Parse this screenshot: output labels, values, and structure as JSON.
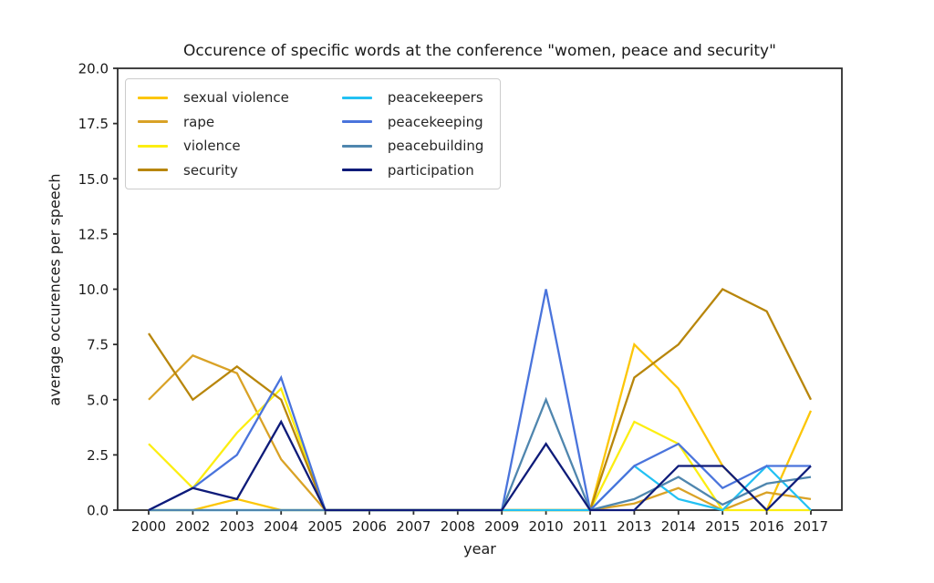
{
  "figure": {
    "title": "Occurence of specific words at the conference \"women, peace and security\""
  },
  "chart_data": {
    "type": "line",
    "title": "Occurence of specific words at the conference \"women, peace and security\"",
    "xlabel": "year",
    "ylabel": "average occurences per speech",
    "x_labels": [
      "2000",
      "2002",
      "2003",
      "2004",
      "2005",
      "2006",
      "2007",
      "2008",
      "2009",
      "2010",
      "2011",
      "2013",
      "2014",
      "2015",
      "2016",
      "2017"
    ],
    "ylim": [
      0,
      20
    ],
    "ytick_step": 2.5,
    "ytick_labels": [
      "0.0",
      "2.5",
      "5.0",
      "7.5",
      "10.0",
      "12.5",
      "15.0",
      "17.5",
      "20.0"
    ],
    "grid": false,
    "legend": {
      "location": "upper left",
      "columns": 2
    },
    "series": [
      {
        "name": "sexual violence",
        "color": "#fcc608",
        "values": [
          0,
          0,
          0.5,
          0,
          0,
          0,
          0,
          0,
          0,
          0,
          0,
          7.5,
          5.5,
          2,
          0,
          4.5
        ]
      },
      {
        "name": "rape",
        "color": "#d9a226",
        "values": [
          5,
          7,
          6.2,
          2.3,
          0,
          0,
          0,
          0,
          0,
          0,
          0,
          0.3,
          1,
          0,
          0.8,
          0.5
        ]
      },
      {
        "name": "violence",
        "color": "#fcee11",
        "values": [
          3,
          1,
          3.5,
          5.5,
          0,
          0,
          0,
          0,
          0,
          0,
          0,
          4,
          3,
          0,
          0,
          0
        ]
      },
      {
        "name": "security",
        "color": "#b8860b",
        "values": [
          8,
          5,
          6.5,
          5,
          0,
          0,
          0,
          0,
          0,
          0,
          0,
          6,
          7.5,
          10,
          9,
          5
        ]
      },
      {
        "name": "peacekeepers",
        "color": "#23c1f3",
        "values": [
          0,
          0,
          0,
          0,
          0,
          0,
          0,
          0,
          0,
          0,
          0,
          2,
          0.5,
          0,
          2,
          0
        ]
      },
      {
        "name": "peacekeeping",
        "color": "#4a74dc",
        "values": [
          0,
          1,
          2.5,
          6,
          0,
          0,
          0,
          0,
          0,
          10,
          0,
          2,
          3,
          1,
          2,
          2
        ]
      },
      {
        "name": "peacebuilding",
        "color": "#4f86ae",
        "values": [
          0,
          0,
          0,
          0,
          0,
          0,
          0,
          0,
          0,
          5,
          0,
          0.5,
          1.5,
          0.25,
          1.2,
          1.5
        ]
      },
      {
        "name": "participation",
        "color": "#0e1b79",
        "values": [
          0,
          1,
          0.5,
          4,
          0,
          0,
          0,
          0,
          0,
          3,
          0,
          0,
          2,
          2,
          0,
          2
        ]
      }
    ]
  }
}
